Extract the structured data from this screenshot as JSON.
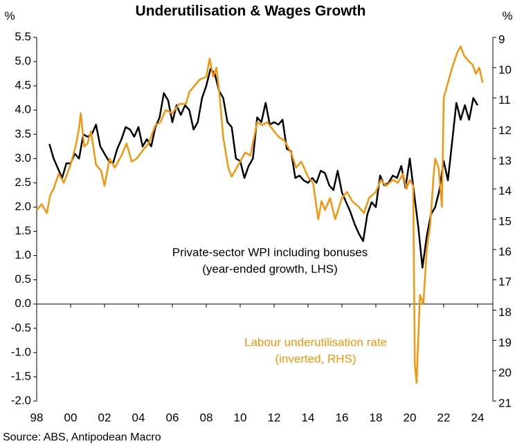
{
  "chart_data": {
    "type": "line",
    "title": "Underutilisation & Wages Growth",
    "y_unit": "%",
    "y2_unit": "%",
    "source": "Source: ABS, Antipodean Macro",
    "xlim": [
      1998,
      2024.9
    ],
    "xticks": [
      {
        "value": 1998,
        "label": "98"
      },
      {
        "value": 2000,
        "label": "00"
      },
      {
        "value": 2002,
        "label": "02"
      },
      {
        "value": 2004,
        "label": "04"
      },
      {
        "value": 2006,
        "label": "06"
      },
      {
        "value": 2008,
        "label": "08"
      },
      {
        "value": 2010,
        "label": "10"
      },
      {
        "value": 2012,
        "label": "12"
      },
      {
        "value": 2014,
        "label": "14"
      },
      {
        "value": 2016,
        "label": "16"
      },
      {
        "value": 2018,
        "label": "18"
      },
      {
        "value": 2020,
        "label": "20"
      },
      {
        "value": 2022,
        "label": "22"
      },
      {
        "value": 2024,
        "label": "24"
      }
    ],
    "ylim": [
      -2.0,
      5.5
    ],
    "yticks": [
      5.5,
      {
        "value": 5.0,
        "label": "5.0"
      },
      4.5,
      {
        "value": 4.0,
        "label": "4.0"
      },
      3.5,
      {
        "value": 3.0,
        "label": "3.0"
      },
      2.5,
      {
        "value": 2.0,
        "label": "2.0"
      },
      1.5,
      {
        "value": 1.0,
        "label": "1.0"
      },
      0.5,
      {
        "value": 0.0,
        "label": "0.0"
      },
      -0.5,
      {
        "value": -1.0,
        "label": "-1.0"
      },
      -1.5,
      {
        "value": -2.0,
        "label": "-2.0"
      }
    ],
    "y2lim": [
      9,
      21
    ],
    "y2_inverted": true,
    "y2ticks": [
      9,
      10,
      11,
      12,
      13,
      14,
      15,
      16,
      17,
      18,
      19,
      20,
      21
    ],
    "annotations": [
      {
        "lines": [
          "Private-sector WPI including bonuses",
          "(year-ended growth, LHS)"
        ],
        "color": "#000000"
      },
      {
        "lines": [
          "Labour underutilisation rate",
          "(inverted, RHS)"
        ],
        "color": "#f2960c"
      }
    ],
    "series": [
      {
        "name": "Private-sector WPI including bonuses",
        "color": "#000000",
        "axis": "y",
        "x": [
          1998.75,
          1999,
          1999.25,
          1999.5,
          1999.75,
          2000,
          2000.25,
          2000.5,
          2000.75,
          2001,
          2001.25,
          2001.5,
          2001.75,
          2002,
          2002.25,
          2002.5,
          2002.75,
          2003,
          2003.25,
          2003.5,
          2003.75,
          2004,
          2004.25,
          2004.5,
          2004.75,
          2005,
          2005.25,
          2005.5,
          2005.75,
          2006,
          2006.25,
          2006.5,
          2006.75,
          2007,
          2007.25,
          2007.5,
          2007.75,
          2008,
          2008.25,
          2008.5,
          2008.75,
          2009,
          2009.25,
          2009.5,
          2009.75,
          2010,
          2010.25,
          2010.5,
          2010.75,
          2011,
          2011.25,
          2011.5,
          2011.75,
          2012,
          2012.25,
          2012.5,
          2012.75,
          2013,
          2013.25,
          2013.5,
          2013.75,
          2014,
          2014.25,
          2014.5,
          2014.75,
          2015,
          2015.25,
          2015.5,
          2015.75,
          2016,
          2016.25,
          2016.5,
          2016.75,
          2017,
          2017.25,
          2017.5,
          2017.75,
          2018,
          2018.25,
          2018.5,
          2018.75,
          2019,
          2019.25,
          2019.5,
          2019.75,
          2020,
          2020.25,
          2020.5,
          2020.75,
          2021,
          2021.25,
          2021.5,
          2021.75,
          2022,
          2022.25,
          2022.5,
          2022.75,
          2023,
          2023.25,
          2023.5,
          2023.75,
          2024
        ],
        "values": [
          3.3,
          3.0,
          2.8,
          2.6,
          2.9,
          2.9,
          3.1,
          3.0,
          3.5,
          3.45,
          3.5,
          3.7,
          3.25,
          3.1,
          2.95,
          2.9,
          3.2,
          3.4,
          3.65,
          3.6,
          3.45,
          3.65,
          3.25,
          3.4,
          3.25,
          3.65,
          3.85,
          4.35,
          4.2,
          3.75,
          4.1,
          3.9,
          4.1,
          4.0,
          3.6,
          3.75,
          4.25,
          4.5,
          4.85,
          4.75,
          4.4,
          4.25,
          3.75,
          3.65,
          3.0,
          2.95,
          2.6,
          2.85,
          3.0,
          3.85,
          3.75,
          4.15,
          3.7,
          3.75,
          3.7,
          3.8,
          3.2,
          3.15,
          2.6,
          2.65,
          2.55,
          2.5,
          2.6,
          2.5,
          2.75,
          2.7,
          2.45,
          2.35,
          2.75,
          2.3,
          2.1,
          1.9,
          1.65,
          1.45,
          1.3,
          1.85,
          2.1,
          2.0,
          2.65,
          2.45,
          2.5,
          2.65,
          2.6,
          2.85,
          2.4,
          3.0,
          2.3,
          1.6,
          0.75,
          1.4,
          1.85,
          2.0,
          2.35,
          2.95,
          2.55,
          3.35,
          4.15,
          3.8,
          4.1,
          3.8,
          4.25,
          4.1
        ]
      },
      {
        "name": "Labour underutilisation rate",
        "color": "#f2960c",
        "axis": "y2",
        "x": [
          1998.0,
          1998.3,
          1998.6,
          1998.8,
          1999.0,
          1999.3,
          1999.6,
          2000.0,
          2000.3,
          2000.5,
          2000.6,
          2000.8,
          2001.0,
          2001.2,
          2001.5,
          2001.8,
          2002.0,
          2002.3,
          2002.6,
          2003.0,
          2003.3,
          2003.6,
          2003.9,
          2004.3,
          2004.6,
          2005.0,
          2005.3,
          2005.6,
          2006.0,
          2006.4,
          2006.8,
          2007.0,
          2007.3,
          2007.6,
          2008.0,
          2008.2,
          2008.4,
          2008.6,
          2008.8,
          2009.0,
          2009.3,
          2009.5,
          2009.8,
          2010.0,
          2010.3,
          2010.6,
          2011.0,
          2011.3,
          2011.6,
          2012.0,
          2012.3,
          2012.6,
          2013.0,
          2013.3,
          2013.6,
          2014.0,
          2014.3,
          2014.6,
          2014.8,
          2015.0,
          2015.3,
          2015.6,
          2016.0,
          2016.3,
          2016.6,
          2017.0,
          2017.3,
          2017.6,
          2018.0,
          2018.3,
          2018.6,
          2019.0,
          2019.3,
          2019.6,
          2019.8,
          2020.0,
          2020.2,
          2020.3,
          2020.4,
          2020.6,
          2020.8,
          2021.0,
          2021.2,
          2021.4,
          2021.5,
          2021.7,
          2021.9,
          2022.0,
          2022.2,
          2022.5,
          2022.8,
          2023.0,
          2023.2,
          2023.5,
          2023.7,
          2023.9,
          2024.1,
          2024.3
        ],
        "values": [
          14.7,
          14.5,
          14.8,
          14.2,
          14.0,
          13.5,
          13.8,
          13.2,
          12.6,
          12.0,
          11.5,
          12.6,
          12.5,
          12.1,
          13.2,
          13.4,
          13.9,
          13.0,
          13.3,
          12.9,
          12.5,
          13.1,
          13.0,
          12.7,
          12.5,
          11.9,
          11.8,
          11.4,
          11.5,
          11.2,
          11.2,
          10.8,
          10.6,
          10.4,
          10.3,
          9.7,
          10.3,
          10.0,
          11.0,
          12.3,
          13.3,
          13.6,
          13.3,
          13.1,
          12.8,
          12.9,
          11.8,
          11.9,
          11.8,
          12.1,
          12.3,
          12.4,
          12.8,
          13.3,
          13.1,
          13.6,
          13.8,
          15.0,
          14.4,
          14.7,
          14.3,
          15.0,
          14.3,
          14.1,
          14.4,
          14.6,
          14.8,
          14.3,
          14.1,
          13.7,
          13.9,
          13.7,
          13.8,
          13.5,
          14.0,
          13.7,
          13.9,
          19.8,
          20.4,
          17.5,
          17.8,
          16.0,
          15.2,
          13.6,
          13.0,
          13.3,
          14.6,
          11.0,
          10.6,
          10.0,
          9.5,
          9.3,
          9.6,
          9.8,
          9.9,
          10.2,
          10.0,
          10.5
        ]
      }
    ]
  }
}
